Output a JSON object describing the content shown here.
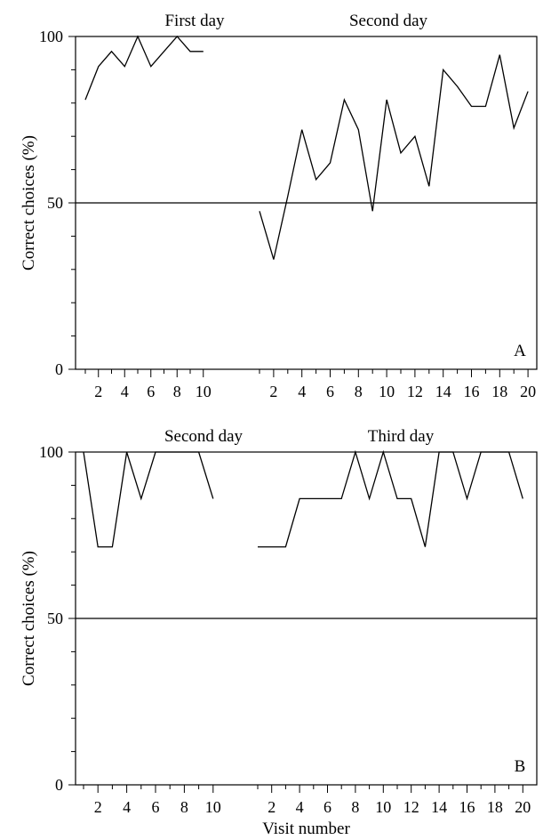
{
  "chart_data": [
    {
      "type": "line",
      "panel_label": "A",
      "ylabel": "Correct choices (%)",
      "xlabel": "",
      "ylim": [
        0,
        100
      ],
      "yticks": [
        0,
        50,
        100
      ],
      "reference_line": 50,
      "grid": false,
      "days": [
        {
          "label": "First day",
          "x": [
            1,
            2,
            3,
            4,
            5,
            6,
            7,
            8,
            9,
            10
          ],
          "xtick_labels": [
            "2",
            "4",
            "6",
            "8",
            "10"
          ],
          "values": [
            81,
            91,
            95.5,
            91,
            100,
            91,
            95.5,
            100,
            95.5,
            95.5
          ]
        },
        {
          "label": "Second day",
          "x": [
            1,
            2,
            3,
            4,
            5,
            6,
            7,
            8,
            9,
            10,
            11,
            12,
            13,
            14,
            15,
            16,
            17,
            18,
            19,
            20
          ],
          "xtick_labels": [
            "2",
            "4",
            "6",
            "8",
            "10",
            "12",
            "14",
            "16",
            "18",
            "20"
          ],
          "values": [
            47.5,
            33,
            52,
            72,
            57,
            62,
            81,
            72,
            47.5,
            81,
            65,
            70,
            55,
            90,
            85,
            79,
            79,
            94.5,
            72.5,
            83.5
          ]
        }
      ]
    },
    {
      "type": "line",
      "panel_label": "B",
      "ylabel": "Correct choices (%)",
      "xlabel": "Visit number",
      "ylim": [
        0,
        100
      ],
      "yticks": [
        0,
        50,
        100
      ],
      "reference_line": 50,
      "grid": false,
      "days": [
        {
          "label": "Second day",
          "x": [
            1,
            2,
            3,
            4,
            5,
            6,
            7,
            8,
            9,
            10
          ],
          "xtick_labels": [
            "2",
            "4",
            "6",
            "8",
            "10"
          ],
          "values": [
            100,
            71.5,
            71.5,
            100,
            86,
            100,
            100,
            100,
            100,
            86
          ]
        },
        {
          "label": "Third day",
          "x": [
            1,
            2,
            3,
            4,
            5,
            6,
            7,
            8,
            9,
            10,
            11,
            12,
            13,
            14,
            15,
            16,
            17,
            18,
            19,
            20
          ],
          "xtick_labels": [
            "2",
            "4",
            "6",
            "8",
            "10",
            "12",
            "14",
            "16",
            "18",
            "20"
          ],
          "values": [
            71.5,
            71.5,
            71.5,
            86,
            86,
            86,
            86,
            100,
            86,
            100,
            86,
            86,
            71.5,
            100,
            100,
            86,
            100,
            100,
            100,
            86
          ]
        }
      ]
    }
  ]
}
